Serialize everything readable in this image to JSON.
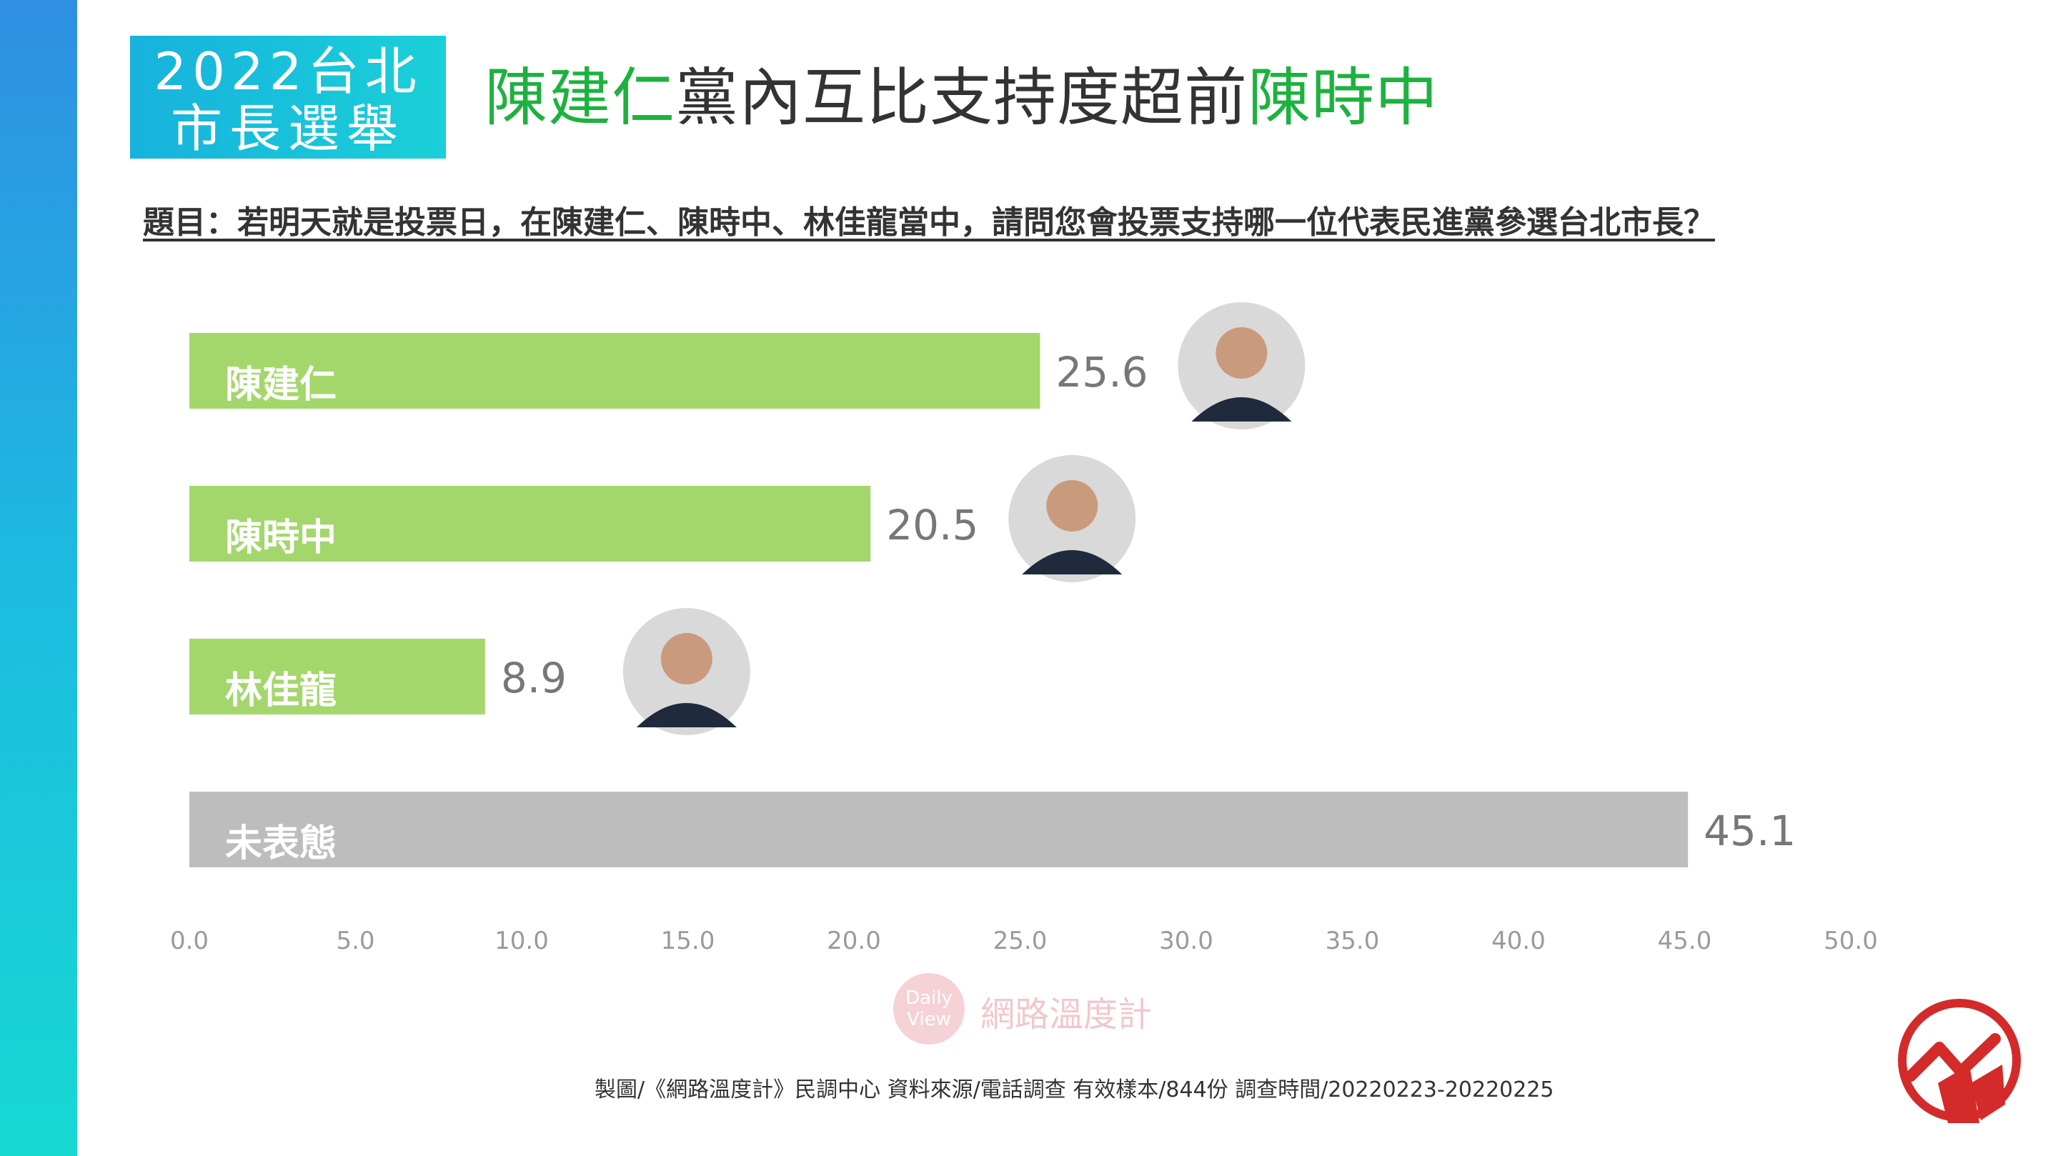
{
  "badge": {
    "line1": "2022台北",
    "line2": "市長選舉"
  },
  "headline": {
    "part1": "陳建仁",
    "part2": "黨內互比支持度超前",
    "part3": "陳時中"
  },
  "question": "題目：若明天就是投票日，在陳建仁、陳時中、林佳龍當中，請問您會投票支持哪一位代表民進黨參選台北市長？",
  "colors": {
    "accent_green": "#1db23f",
    "bar_green": "#a4d76b",
    "bar_gray": "#bdbdbd"
  },
  "chart_data": {
    "type": "bar",
    "orientation": "horizontal",
    "categories": [
      "陳建仁",
      "陳時中",
      "林佳龍",
      "未表態"
    ],
    "values": [
      25.6,
      20.5,
      8.9,
      45.1
    ],
    "value_labels": [
      "25.6",
      "20.5",
      "8.9",
      "45.1"
    ],
    "bar_colors": [
      "#a4d76b",
      "#a4d76b",
      "#a4d76b",
      "#bdbdbd"
    ],
    "xlim": [
      0,
      50
    ],
    "xticks": [
      "0.0",
      "5.0",
      "10.0",
      "15.0",
      "20.0",
      "25.0",
      "30.0",
      "35.0",
      "40.0",
      "45.0",
      "50.0"
    ],
    "grid": false,
    "legend": "none"
  },
  "watermark": {
    "logo_text": "Daily View",
    "name": "網路溫度計"
  },
  "footer": "製圖/《網路溫度計》民調中心   資料來源/電話調查   有效樣本/844份   調查時間/20220223-20220225"
}
